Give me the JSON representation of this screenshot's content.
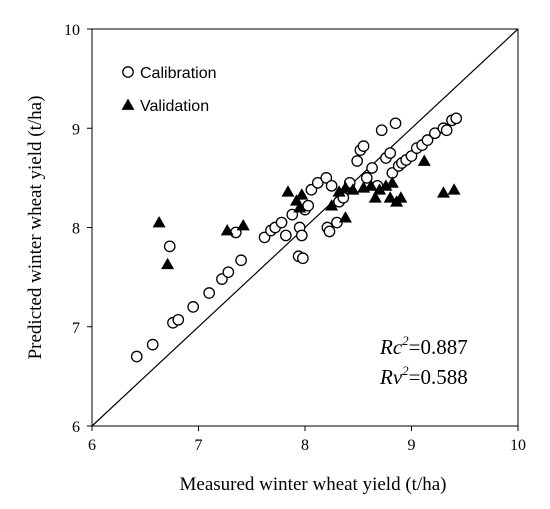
{
  "chart_data": {
    "type": "scatter",
    "xlabel": "Measured winter wheat yield (t/ha)",
    "ylabel": "Predicted winter wheat yield (t/ha)",
    "xlim": [
      6,
      10
    ],
    "ylim": [
      6,
      10
    ],
    "x_ticks": [
      "6",
      "7",
      "8",
      "9",
      "10"
    ],
    "y_ticks": [
      "6",
      "7",
      "8",
      "9",
      "10"
    ],
    "grid": false,
    "legend_placement": "top-left",
    "reference_line": "1:1",
    "series": [
      {
        "name": "Calibration",
        "marker": "open-circle",
        "points": [
          [
            6.42,
            6.7
          ],
          [
            6.57,
            6.82
          ],
          [
            6.76,
            7.04
          ],
          [
            6.81,
            7.07
          ],
          [
            6.95,
            7.2
          ],
          [
            7.1,
            7.34
          ],
          [
            7.22,
            7.48
          ],
          [
            7.28,
            7.55
          ],
          [
            7.4,
            7.67
          ],
          [
            7.35,
            7.95
          ],
          [
            6.73,
            7.81
          ],
          [
            7.62,
            7.9
          ],
          [
            7.68,
            7.97
          ],
          [
            7.72,
            8.0
          ],
          [
            7.78,
            8.05
          ],
          [
            7.82,
            7.92
          ],
          [
            7.88,
            8.13
          ],
          [
            7.95,
            8.0
          ],
          [
            7.97,
            7.92
          ],
          [
            7.94,
            7.71
          ],
          [
            7.98,
            7.69
          ],
          [
            8.0,
            8.18
          ],
          [
            8.03,
            8.22
          ],
          [
            8.06,
            8.38
          ],
          [
            8.12,
            8.45
          ],
          [
            8.2,
            8.5
          ],
          [
            8.25,
            8.42
          ],
          [
            8.21,
            8.0
          ],
          [
            8.23,
            7.96
          ],
          [
            8.3,
            8.05
          ],
          [
            8.32,
            8.26
          ],
          [
            8.36,
            8.3
          ],
          [
            8.42,
            8.45
          ],
          [
            8.49,
            8.67
          ],
          [
            8.52,
            8.78
          ],
          [
            8.55,
            8.82
          ],
          [
            8.58,
            8.5
          ],
          [
            8.63,
            8.6
          ],
          [
            8.68,
            8.42
          ],
          [
            8.72,
            8.98
          ],
          [
            8.76,
            8.7
          ],
          [
            8.8,
            8.75
          ],
          [
            8.82,
            8.55
          ],
          [
            8.85,
            9.05
          ],
          [
            8.88,
            8.62
          ],
          [
            8.91,
            8.65
          ],
          [
            8.95,
            8.68
          ],
          [
            9.0,
            8.72
          ],
          [
            9.05,
            8.8
          ],
          [
            9.1,
            8.83
          ],
          [
            9.15,
            8.88
          ],
          [
            9.22,
            8.95
          ],
          [
            9.3,
            9.0
          ],
          [
            9.33,
            8.98
          ],
          [
            9.38,
            9.08
          ],
          [
            9.42,
            9.1
          ]
        ]
      },
      {
        "name": "Validation",
        "marker": "filled-triangle",
        "points": [
          [
            6.63,
            8.05
          ],
          [
            6.71,
            7.63
          ],
          [
            7.27,
            7.97
          ],
          [
            7.42,
            8.02
          ],
          [
            7.84,
            8.36
          ],
          [
            7.92,
            8.27
          ],
          [
            7.95,
            8.2
          ],
          [
            7.97,
            8.33
          ],
          [
            8.25,
            8.22
          ],
          [
            8.32,
            8.36
          ],
          [
            8.38,
            8.4
          ],
          [
            8.38,
            8.1
          ],
          [
            8.45,
            8.38
          ],
          [
            8.55,
            8.4
          ],
          [
            8.62,
            8.42
          ],
          [
            8.7,
            8.38
          ],
          [
            8.76,
            8.42
          ],
          [
            8.8,
            8.3
          ],
          [
            8.82,
            8.45
          ],
          [
            8.86,
            8.26
          ],
          [
            8.9,
            8.3
          ],
          [
            9.12,
            8.67
          ],
          [
            9.3,
            8.35
          ],
          [
            9.4,
            8.38
          ],
          [
            8.66,
            8.3
          ]
        ]
      }
    ],
    "annotations": [
      {
        "prefix": "Rc",
        "sup": "2",
        "value": "=0.887"
      },
      {
        "prefix": "Rv",
        "sup": "2",
        "value": "=0.588"
      }
    ]
  }
}
